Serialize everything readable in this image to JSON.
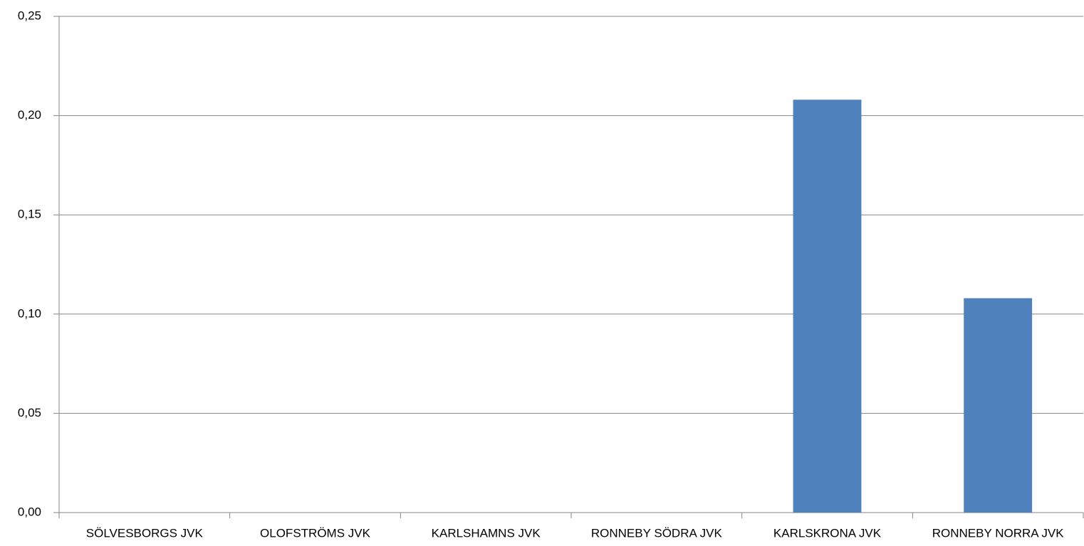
{
  "chart_data": {
    "type": "bar",
    "categories": [
      "SÖLVESBORGS JVK",
      "OLOFSTRÖMS JVK",
      "KARLSHAMNS JVK",
      "RONNEBY SÖDRA JVK",
      "KARLSKRONA JVK",
      "RONNEBY NORRA JVK"
    ],
    "values": [
      0,
      0,
      0,
      0,
      0.208,
      0.108
    ],
    "color": "#4f81bd",
    "ylim": [
      0,
      0.25
    ],
    "yticks": [
      {
        "value": 0,
        "label": "0,00"
      },
      {
        "value": 0.05,
        "label": "0,05"
      },
      {
        "value": 0.1,
        "label": "0,10"
      },
      {
        "value": 0.15,
        "label": "0,15"
      },
      {
        "value": 0.2,
        "label": "0,20"
      },
      {
        "value": 0.25,
        "label": "0,25"
      }
    ],
    "grid": true
  }
}
